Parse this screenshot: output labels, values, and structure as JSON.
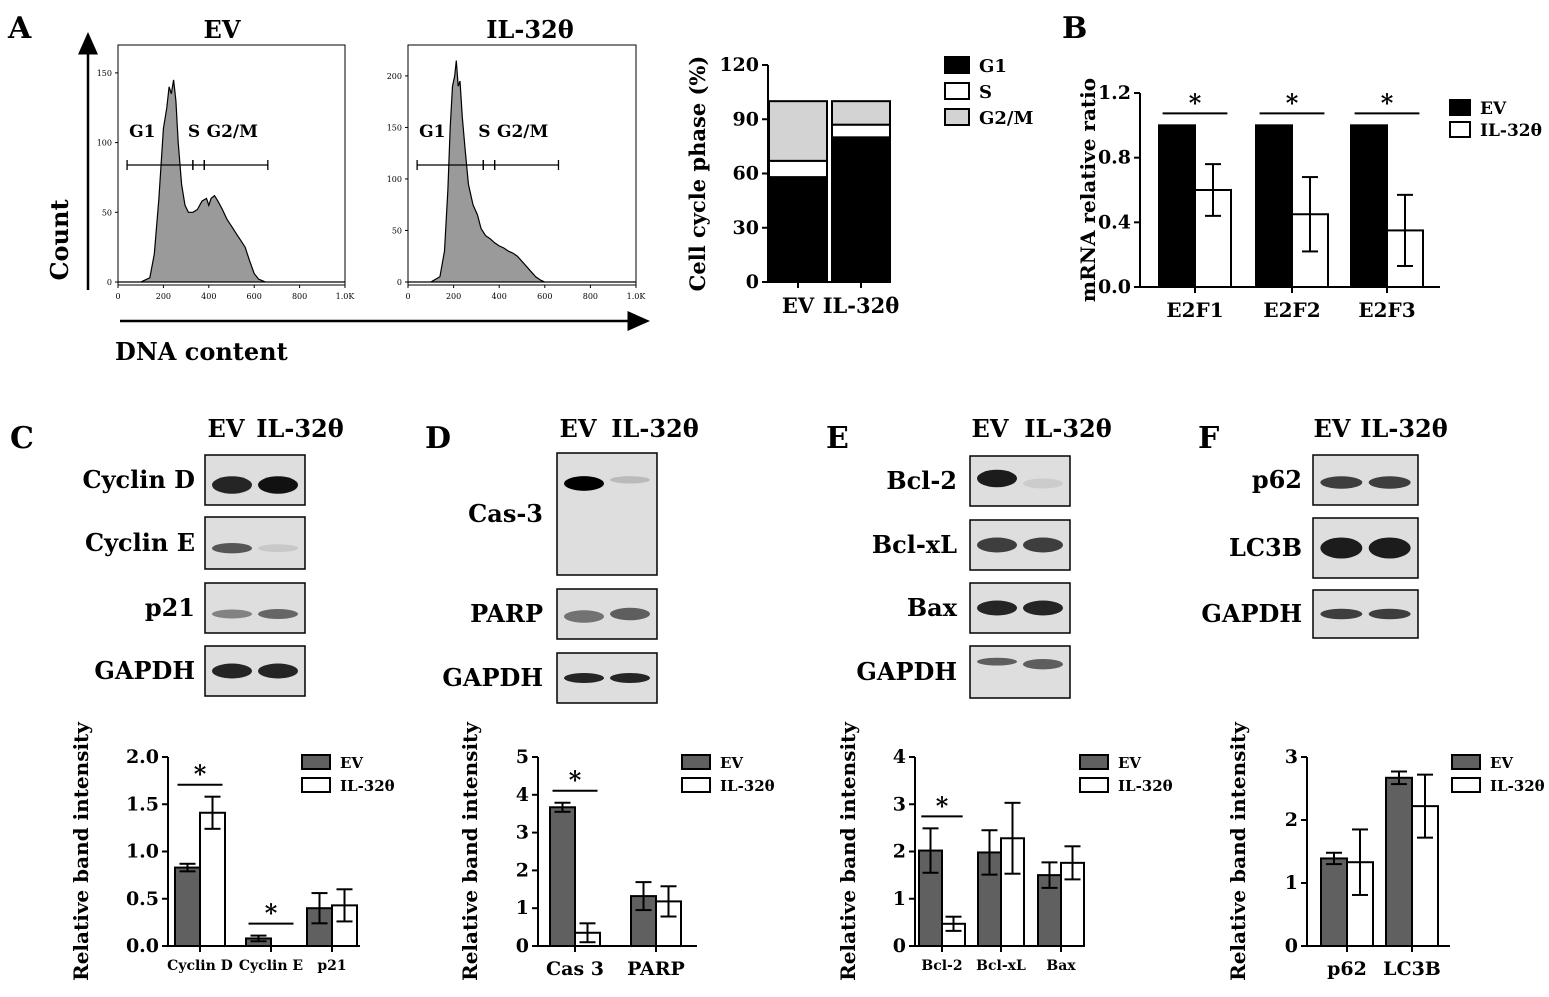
{
  "panels": {
    "A": "A",
    "B": "B",
    "C": "C",
    "D": "D",
    "E": "E",
    "F": "F"
  },
  "flow": {
    "x_axis_label": "DNA content",
    "y_axis_label": "Count",
    "plots": [
      {
        "title": "EV",
        "y_ticks": [
          "150",
          "100",
          "50",
          "0"
        ],
        "y_tick_vals": [
          150,
          100,
          50,
          0
        ],
        "y_max": 170,
        "gate_labels": [
          "G1",
          "S",
          "G2/M"
        ],
        "hist": [
          [
            0,
            0
          ],
          [
            50,
            0
          ],
          [
            100,
            0
          ],
          [
            140,
            3
          ],
          [
            160,
            20
          ],
          [
            180,
            60
          ],
          [
            200,
            110
          ],
          [
            215,
            125
          ],
          [
            225,
            140
          ],
          [
            235,
            135
          ],
          [
            245,
            145
          ],
          [
            255,
            130
          ],
          [
            265,
            100
          ],
          [
            280,
            70
          ],
          [
            295,
            55
          ],
          [
            310,
            50
          ],
          [
            330,
            50
          ],
          [
            350,
            52
          ],
          [
            370,
            58
          ],
          [
            390,
            60
          ],
          [
            400,
            55
          ],
          [
            410,
            60
          ],
          [
            425,
            62
          ],
          [
            440,
            58
          ],
          [
            460,
            52
          ],
          [
            480,
            45
          ],
          [
            500,
            40
          ],
          [
            520,
            35
          ],
          [
            540,
            30
          ],
          [
            560,
            25
          ],
          [
            580,
            15
          ],
          [
            600,
            6
          ],
          [
            620,
            2
          ],
          [
            650,
            0
          ],
          [
            1000,
            0
          ]
        ],
        "gates": [
          [
            40,
            330
          ],
          [
            330,
            380
          ],
          [
            380,
            660
          ]
        ]
      },
      {
        "title": "IL-32θ",
        "y_ticks": [
          "200",
          "150",
          "100",
          "50",
          "0"
        ],
        "y_tick_vals": [
          200,
          150,
          100,
          50,
          0
        ],
        "y_max": 230,
        "gate_labels": [
          "G1",
          "S",
          "G2/M"
        ],
        "hist": [
          [
            0,
            0
          ],
          [
            100,
            0
          ],
          [
            140,
            5
          ],
          [
            160,
            30
          ],
          [
            175,
            90
          ],
          [
            185,
            150
          ],
          [
            195,
            190
          ],
          [
            205,
            200
          ],
          [
            212,
            215
          ],
          [
            220,
            190
          ],
          [
            228,
            195
          ],
          [
            238,
            160
          ],
          [
            250,
            130
          ],
          [
            265,
            95
          ],
          [
            285,
            75
          ],
          [
            305,
            65
          ],
          [
            320,
            52
          ],
          [
            340,
            45
          ],
          [
            360,
            42
          ],
          [
            380,
            38
          ],
          [
            400,
            35
          ],
          [
            420,
            33
          ],
          [
            440,
            30
          ],
          [
            460,
            28
          ],
          [
            480,
            25
          ],
          [
            500,
            20
          ],
          [
            520,
            15
          ],
          [
            540,
            10
          ],
          [
            560,
            5
          ],
          [
            580,
            2
          ],
          [
            600,
            0
          ],
          [
            1000,
            0
          ]
        ],
        "gates": [
          [
            40,
            330
          ],
          [
            330,
            380
          ],
          [
            380,
            660
          ]
        ]
      }
    ],
    "x_ticks": [
      "0",
      "200",
      "400",
      "600",
      "800",
      "1.0K"
    ],
    "x_tick_vals": [
      0,
      200,
      400,
      600,
      800,
      1000
    ]
  },
  "chart_data": [
    {
      "type": "bar",
      "stacked": true,
      "panel": "A",
      "categories": [
        "EV",
        "IL-32θ"
      ],
      "series": [
        {
          "name": "G1",
          "values": [
            58,
            80
          ],
          "color": "#000000"
        },
        {
          "name": "S",
          "values": [
            9,
            7
          ],
          "color": "#ffffff"
        },
        {
          "name": "G2/M",
          "values": [
            33,
            13
          ],
          "color": "#d3d3d3"
        }
      ],
      "ylabel": "Cell cycle phase (%)",
      "ylim": [
        0,
        120
      ],
      "yticks": [
        0,
        30,
        60,
        90,
        120
      ],
      "legend": "right"
    },
    {
      "type": "bar",
      "panel": "B",
      "categories": [
        "E2F1",
        "E2F2",
        "E2F3"
      ],
      "series": [
        {
          "name": "EV",
          "values": [
            1.0,
            1.0,
            1.0
          ],
          "errors": [
            0,
            0,
            0
          ],
          "color": "#000000"
        },
        {
          "name": "IL-32θ",
          "values": [
            0.6,
            0.45,
            0.35
          ],
          "errors": [
            0.16,
            0.23,
            0.22
          ],
          "color": "#ffffff"
        }
      ],
      "ylabel": "mRNA relative ratio",
      "ylim": [
        0,
        1.2
      ],
      "yticks": [
        0.0,
        0.4,
        0.8,
        1.2
      ],
      "ytick_labels": [
        "0.0",
        "0.4",
        "0.8",
        "1.2"
      ],
      "significant": [
        0,
        1,
        2
      ],
      "legend": "right"
    },
    {
      "type": "bar",
      "panel": "C",
      "categories": [
        "Cyclin D",
        "Cyclin E",
        "p21"
      ],
      "series": [
        {
          "name": "EV",
          "values": [
            0.83,
            0.08,
            0.4
          ],
          "errors": [
            0.04,
            0.03,
            0.16
          ],
          "color": "#606060"
        },
        {
          "name": "IL-32θ",
          "values": [
            1.41,
            0,
            0.43
          ],
          "errors": [
            0.17,
            0,
            0.17
          ],
          "color": "#ffffff"
        }
      ],
      "ylabel": "Relative band intensity",
      "ylim": [
        0,
        2.0
      ],
      "yticks": [
        0,
        0.5,
        1.0,
        1.5,
        2.0
      ],
      "ytick_labels": [
        "0.0",
        "0.5",
        "1.0",
        "1.5",
        "2.0"
      ],
      "significant": [
        0,
        1
      ],
      "legend": "top-right"
    },
    {
      "type": "bar",
      "panel": "D",
      "categories": [
        "Cas 3",
        "PARP"
      ],
      "series": [
        {
          "name": "EV",
          "values": [
            3.67,
            1.32
          ],
          "errors": [
            0.12,
            0.37
          ],
          "color": "#606060"
        },
        {
          "name": "IL-32θ",
          "values": [
            0.35,
            1.18
          ],
          "errors": [
            0.25,
            0.4
          ],
          "color": "#ffffff"
        }
      ],
      "ylabel": "Relative band intensity",
      "ylim": [
        0,
        5
      ],
      "yticks": [
        0,
        1,
        2,
        3,
        4,
        5
      ],
      "ytick_labels": [
        "0",
        "1",
        "2",
        "3",
        "4",
        "5"
      ],
      "significant": [
        0
      ],
      "legend": "top-right"
    },
    {
      "type": "bar",
      "panel": "E",
      "categories": [
        "Bcl-2",
        "Bcl-xL",
        "Bax"
      ],
      "series": [
        {
          "name": "EV",
          "values": [
            2.02,
            1.98,
            1.5
          ],
          "errors": [
            0.47,
            0.47,
            0.27
          ],
          "color": "#606060"
        },
        {
          "name": "IL-32θ",
          "values": [
            0.47,
            2.28,
            1.76
          ],
          "errors": [
            0.15,
            0.75,
            0.35
          ],
          "color": "#ffffff"
        }
      ],
      "ylabel": "Relative band intensity",
      "ylim": [
        0,
        4
      ],
      "yticks": [
        0,
        1,
        2,
        3,
        4
      ],
      "ytick_labels": [
        "0",
        "1",
        "2",
        "3",
        "4"
      ],
      "significant": [
        0
      ],
      "legend": "top-right"
    },
    {
      "type": "bar",
      "panel": "F",
      "categories": [
        "p62",
        "LC3B"
      ],
      "series": [
        {
          "name": "EV",
          "values": [
            1.39,
            2.67
          ],
          "errors": [
            0.09,
            0.1
          ],
          "color": "#606060"
        },
        {
          "name": "IL-32θ",
          "values": [
            1.33,
            2.22
          ],
          "errors": [
            0.52,
            0.5
          ],
          "color": "#ffffff"
        }
      ],
      "ylabel": "Relative band intensity",
      "ylim": [
        0,
        3
      ],
      "yticks": [
        0,
        1,
        2,
        3
      ],
      "ytick_labels": [
        "0",
        "1",
        "2",
        "3"
      ],
      "significant": [],
      "legend": "top-right"
    }
  ],
  "blots": {
    "C": {
      "lanes": [
        "EV",
        "IL-32θ"
      ],
      "rows": [
        "Cyclin D",
        "Cyclin E",
        "p21",
        "GAPDH"
      ]
    },
    "D": {
      "lanes": [
        "EV",
        "IL-32θ"
      ],
      "rows": [
        "Cas-3",
        "PARP",
        "GAPDH"
      ]
    },
    "E": {
      "lanes": [
        "EV",
        "IL-32θ"
      ],
      "rows": [
        "Bcl-2",
        "Bcl-xL",
        "Bax",
        "GAPDH"
      ]
    },
    "F": {
      "lanes": [
        "EV",
        "IL-32θ"
      ],
      "rows": [
        "p62",
        "LC3B",
        "GAPDH"
      ]
    }
  },
  "star": "*"
}
